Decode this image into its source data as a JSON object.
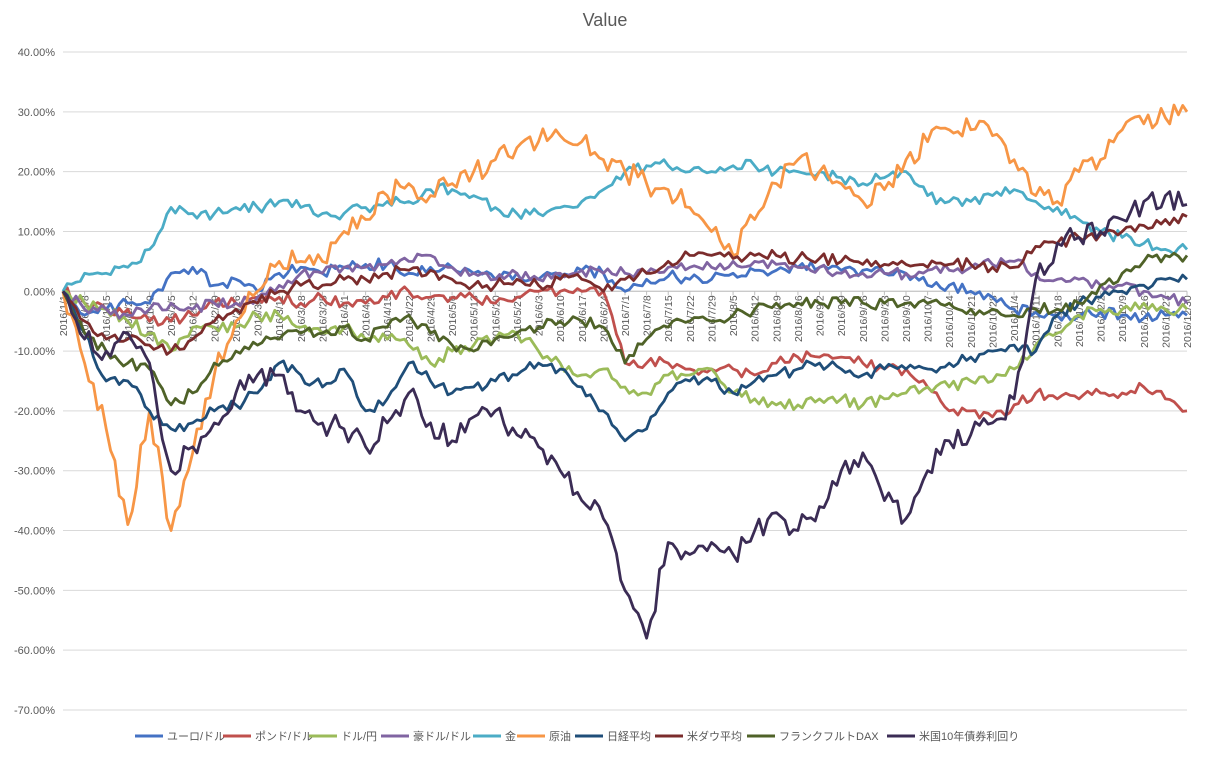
{
  "chart_data": {
    "type": "line",
    "title": "Value",
    "ylim": [
      -0.7,
      0.4
    ],
    "y_ticks": [
      0.4,
      0.3,
      0.2,
      0.1,
      0.0,
      -0.1,
      -0.2,
      -0.3,
      -0.4,
      -0.5,
      -0.6,
      -0.7
    ],
    "y_tick_labels": [
      "40.00%",
      "30.00%",
      "20.00%",
      "10.00%",
      "0.00%",
      "-10.00%",
      "-20.00%",
      "-30.00%",
      "-40.00%",
      "-50.00%",
      "-60.00%",
      "-70.00%"
    ],
    "x_tick_labels": [
      "2016/1/1",
      "2016/1/8",
      "2016/1/15",
      "2016/1/22",
      "2016/1/29",
      "2016/2/5",
      "2016/2/12",
      "2016/2/19",
      "2016/2/26",
      "2016/3/4",
      "2016/3/11",
      "2016/3/18",
      "2016/3/25",
      "2016/4/1",
      "2016/4/8",
      "2016/4/15",
      "2016/4/22",
      "2016/4/29",
      "2016/5/6",
      "2016/5/13",
      "2016/5/20",
      "2016/5/27",
      "2016/6/3",
      "2016/6/10",
      "2016/6/17",
      "2016/6/24",
      "2016/7/1",
      "2016/7/8",
      "2016/7/15",
      "2016/7/22",
      "2016/7/29",
      "2016/8/5",
      "2016/8/12",
      "2016/8/19",
      "2016/8/26",
      "2016/9/2",
      "2016/9/9",
      "2016/9/16",
      "2016/9/23",
      "2016/9/30",
      "2016/10/7",
      "2016/10/14",
      "2016/10/21",
      "2016/10/28",
      "2016/11/4",
      "2016/11/11",
      "2016/11/18",
      "2016/11/25",
      "2016/12/2",
      "2016/12/9",
      "2016/12/16",
      "2016/12/23",
      "2016/12/30"
    ],
    "x_anchor_ticks": [
      0,
      4,
      8,
      12,
      16,
      20,
      24,
      26,
      28,
      30,
      32,
      36,
      40,
      44,
      48,
      52
    ],
    "grid": true,
    "legend_position": "bottom",
    "series": [
      {
        "name": "ユーロ/ドル",
        "color": "#4472C4",
        "values": [
          0.0,
          -0.04,
          -0.03,
          -0.02,
          -0.02,
          0.03,
          0.04,
          0.01,
          0.02,
          0.0,
          0.03,
          0.04,
          0.03,
          0.04,
          0.045,
          0.045,
          0.03,
          0.04,
          0.04,
          0.03,
          0.02,
          0.03,
          0.02,
          0.025,
          0.035,
          0.03,
          0.0,
          0.02,
          0.025,
          0.02,
          0.02,
          0.03,
          0.035,
          0.035,
          0.04,
          0.04,
          0.035,
          0.035,
          0.03,
          0.03,
          0.01,
          0.01,
          0.0,
          -0.01,
          -0.03,
          -0.035,
          -0.04,
          -0.04,
          -0.035,
          -0.04,
          -0.045,
          -0.04,
          -0.04
        ]
      },
      {
        "name": "ポンド/ドル",
        "color": "#C0504D",
        "values": [
          0.0,
          -0.02,
          -0.03,
          -0.03,
          -0.05,
          -0.05,
          -0.04,
          -0.02,
          -0.02,
          -0.01,
          -0.01,
          -0.02,
          -0.01,
          -0.02,
          -0.02,
          -0.01,
          0.0,
          -0.01,
          -0.01,
          -0.01,
          -0.02,
          -0.01,
          0.0,
          0.0,
          0.0,
          0.0,
          -0.12,
          -0.12,
          -0.12,
          -0.13,
          -0.13,
          -0.13,
          -0.14,
          -0.12,
          -0.11,
          -0.11,
          -0.11,
          -0.12,
          -0.13,
          -0.13,
          -0.16,
          -0.2,
          -0.2,
          -0.21,
          -0.19,
          -0.17,
          -0.18,
          -0.18,
          -0.17,
          -0.17,
          -0.16,
          -0.18,
          -0.2
        ]
      },
      {
        "name": "ドル/円",
        "color": "#9BBB59",
        "values": [
          0.0,
          -0.02,
          -0.03,
          -0.05,
          -0.07,
          -0.1,
          -0.06,
          -0.06,
          -0.06,
          -0.04,
          -0.04,
          -0.06,
          -0.07,
          -0.06,
          -0.08,
          -0.08,
          -0.09,
          -0.12,
          -0.1,
          -0.09,
          -0.08,
          -0.07,
          -0.1,
          -0.12,
          -0.14,
          -0.13,
          -0.16,
          -0.17,
          -0.14,
          -0.14,
          -0.13,
          -0.17,
          -0.18,
          -0.19,
          -0.19,
          -0.18,
          -0.18,
          -0.19,
          -0.18,
          -0.17,
          -0.16,
          -0.16,
          -0.15,
          -0.15,
          -0.13,
          -0.09,
          -0.07,
          -0.04,
          -0.03,
          -0.03,
          -0.02,
          -0.03,
          -0.03
        ]
      },
      {
        "name": "豪ドル/ドル",
        "color": "#8064A2",
        "values": [
          0.0,
          -0.03,
          -0.03,
          -0.04,
          -0.03,
          -0.02,
          -0.03,
          -0.02,
          -0.02,
          -0.01,
          0.01,
          0.03,
          0.03,
          0.04,
          0.04,
          0.045,
          0.05,
          0.06,
          0.04,
          0.03,
          0.02,
          0.03,
          0.02,
          0.03,
          0.035,
          0.03,
          0.03,
          0.03,
          0.04,
          0.04,
          0.04,
          0.05,
          0.05,
          0.045,
          0.04,
          0.04,
          0.03,
          0.03,
          0.03,
          0.03,
          0.035,
          0.035,
          0.04,
          0.045,
          0.05,
          0.03,
          0.02,
          0.02,
          0.01,
          0.01,
          0.0,
          -0.01,
          -0.02
        ]
      },
      {
        "name": "金",
        "color": "#4BACC6",
        "values": [
          0.0,
          0.03,
          0.03,
          0.04,
          0.07,
          0.14,
          0.13,
          0.13,
          0.14,
          0.14,
          0.15,
          0.14,
          0.13,
          0.13,
          0.14,
          0.15,
          0.15,
          0.17,
          0.17,
          0.16,
          0.14,
          0.13,
          0.13,
          0.14,
          0.15,
          0.17,
          0.2,
          0.21,
          0.21,
          0.2,
          0.2,
          0.21,
          0.21,
          0.2,
          0.2,
          0.2,
          0.19,
          0.18,
          0.19,
          0.2,
          0.16,
          0.15,
          0.15,
          0.16,
          0.17,
          0.15,
          0.14,
          0.12,
          0.1,
          0.09,
          0.08,
          0.07,
          0.07
        ]
      },
      {
        "name": "原油",
        "color": "#F79646",
        "values": [
          0.0,
          -0.12,
          -0.23,
          -0.39,
          -0.2,
          -0.4,
          -0.27,
          -0.14,
          -0.05,
          0.0,
          0.05,
          0.05,
          0.05,
          0.1,
          0.12,
          0.16,
          0.18,
          0.16,
          0.18,
          0.2,
          0.22,
          0.24,
          0.25,
          0.26,
          0.25,
          0.22,
          0.2,
          0.18,
          0.17,
          0.14,
          0.1,
          0.06,
          0.12,
          0.18,
          0.22,
          0.2,
          0.18,
          0.15,
          0.17,
          0.22,
          0.25,
          0.27,
          0.27,
          0.26,
          0.22,
          0.16,
          0.15,
          0.2,
          0.22,
          0.27,
          0.28,
          0.29,
          0.3
        ]
      },
      {
        "name": "日経平均",
        "color": "#1F4E79",
        "values": [
          0.0,
          -0.07,
          -0.15,
          -0.15,
          -0.2,
          -0.23,
          -0.22,
          -0.2,
          -0.19,
          -0.17,
          -0.12,
          -0.14,
          -0.16,
          -0.13,
          -0.2,
          -0.18,
          -0.12,
          -0.15,
          -0.17,
          -0.16,
          -0.15,
          -0.14,
          -0.12,
          -0.13,
          -0.16,
          -0.2,
          -0.25,
          -0.23,
          -0.17,
          -0.15,
          -0.15,
          -0.17,
          -0.15,
          -0.14,
          -0.13,
          -0.12,
          -0.13,
          -0.14,
          -0.13,
          -0.13,
          -0.13,
          -0.12,
          -0.11,
          -0.1,
          -0.09,
          -0.1,
          -0.04,
          -0.02,
          -0.01,
          0.0,
          0.01,
          0.02,
          0.02
        ]
      },
      {
        "name": "米ダウ平均",
        "color": "#7B2C2C",
        "values": [
          0.0,
          -0.05,
          -0.08,
          -0.08,
          -0.09,
          -0.1,
          -0.08,
          -0.05,
          -0.03,
          -0.02,
          0.0,
          0.01,
          0.01,
          0.02,
          0.02,
          0.03,
          0.035,
          0.035,
          0.02,
          0.01,
          0.01,
          0.02,
          0.01,
          0.02,
          0.02,
          0.0,
          0.02,
          0.03,
          0.05,
          0.06,
          0.06,
          0.055,
          0.06,
          0.06,
          0.055,
          0.055,
          0.05,
          0.045,
          0.045,
          0.045,
          0.04,
          0.045,
          0.045,
          0.04,
          0.04,
          0.075,
          0.08,
          0.09,
          0.095,
          0.1,
          0.11,
          0.12,
          0.125
        ]
      },
      {
        "name": "フランクフルトDAX",
        "color": "#4F6228",
        "values": [
          0.0,
          -0.07,
          -0.1,
          -0.12,
          -0.13,
          -0.19,
          -0.17,
          -0.12,
          -0.1,
          -0.09,
          -0.08,
          -0.07,
          -0.07,
          -0.06,
          -0.08,
          -0.06,
          -0.04,
          -0.07,
          -0.09,
          -0.1,
          -0.08,
          -0.07,
          -0.06,
          -0.05,
          -0.05,
          -0.06,
          -0.12,
          -0.08,
          -0.06,
          -0.05,
          -0.05,
          -0.04,
          -0.03,
          -0.02,
          -0.02,
          -0.02,
          -0.02,
          -0.02,
          -0.02,
          -0.02,
          -0.02,
          -0.02,
          -0.03,
          -0.03,
          -0.04,
          -0.03,
          -0.03,
          -0.02,
          0.01,
          0.03,
          0.05,
          0.06,
          0.06
        ]
      },
      {
        "name": "米国10年債券利回り",
        "color": "#3B2C55",
        "values": [
          0.0,
          -0.08,
          -0.1,
          -0.07,
          -0.12,
          -0.3,
          -0.26,
          -0.22,
          -0.17,
          -0.14,
          -0.14,
          -0.2,
          -0.22,
          -0.23,
          -0.26,
          -0.22,
          -0.17,
          -0.22,
          -0.25,
          -0.21,
          -0.2,
          -0.24,
          -0.26,
          -0.3,
          -0.35,
          -0.38,
          -0.5,
          -0.58,
          -0.42,
          -0.44,
          -0.42,
          -0.44,
          -0.4,
          -0.37,
          -0.4,
          -0.36,
          -0.3,
          -0.27,
          -0.35,
          -0.38,
          -0.3,
          -0.25,
          -0.24,
          -0.22,
          -0.18,
          0.02,
          0.08,
          0.09,
          0.1,
          0.12,
          0.15,
          0.16,
          0.145
        ]
      }
    ]
  }
}
